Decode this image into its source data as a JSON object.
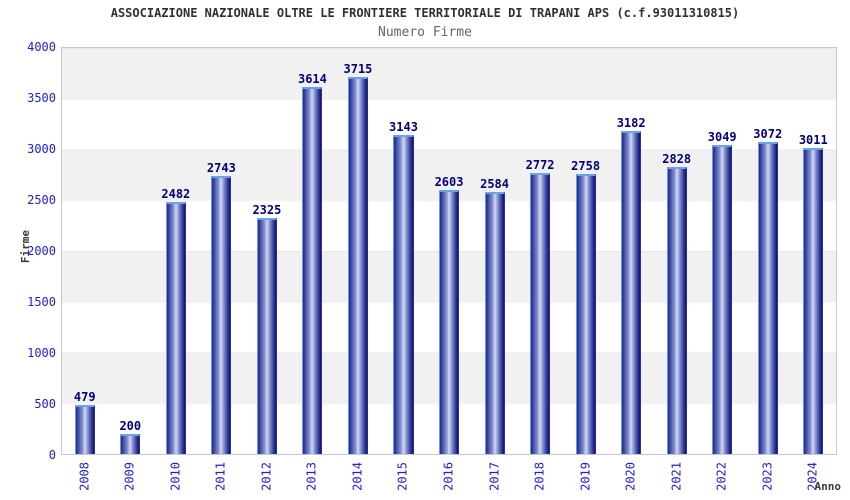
{
  "header": {
    "title": "ASSOCIAZIONE NAZIONALE OLTRE LE FRONTIERE TERRITORIALE DI TRAPANI APS (c.f.93011310815)",
    "subtitle": "Numero Firme"
  },
  "chart_data": {
    "type": "bar",
    "title": "Numero Firme",
    "categories": [
      "2008",
      "2009",
      "2010",
      "2011",
      "2012",
      "2013",
      "2014",
      "2015",
      "2016",
      "2017",
      "2018",
      "2019",
      "2020",
      "2021",
      "2022",
      "2023",
      "2024"
    ],
    "values": [
      479,
      200,
      2482,
      2743,
      2325,
      3614,
      3715,
      3143,
      2603,
      2584,
      2772,
      2758,
      3182,
      2828,
      3049,
      3072,
      3011
    ],
    "xlabel": "Anno",
    "ylabel": "Firme",
    "ylim": [
      0,
      4000
    ],
    "yticks": [
      0,
      500,
      1000,
      1500,
      2000,
      2500,
      3000,
      3500,
      4000
    ],
    "grid": "alternating horizontal bands every 500, gray/white",
    "legend_position": "none",
    "value_labels": "above each bar",
    "x_tick_rotation": "vertical (90deg counterclockwise)",
    "colors": {
      "bar_edge_dark": "#10106a",
      "bar_mid": "#8d99d4",
      "bar_highlight": "#d5daf2",
      "bar_top_cap": "#69a1ea",
      "tick_label_blue": "#2222cc",
      "value_label_navy": "#000078",
      "band_gray": "#f1f1f1",
      "band_white": "#ffffff",
      "plot_border": "#c9c9c9",
      "title_color": "#303030",
      "subtitle_color": "#666666",
      "axis_title_color": "#3a3a3a"
    }
  }
}
